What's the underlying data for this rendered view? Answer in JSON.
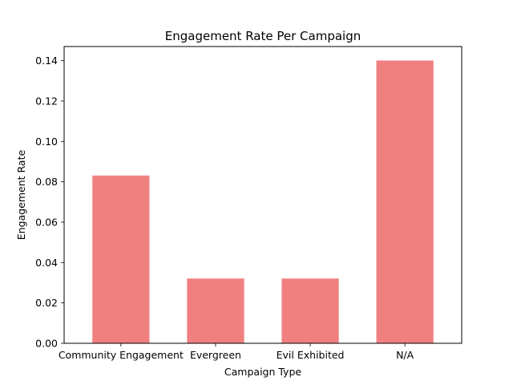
{
  "chart_data": {
    "type": "bar",
    "title": "Engagement Rate Per Campaign",
    "xlabel": "Campaign Type",
    "ylabel": "Engagement Rate",
    "categories": [
      "Community Engagement",
      "Evergreen",
      "Evil Exhibited",
      "N/A"
    ],
    "values": [
      0.083,
      0.032,
      0.032,
      0.14
    ],
    "ylim": [
      0,
      0.147
    ],
    "yticks": [
      0.0,
      0.02,
      0.04,
      0.06,
      0.08,
      0.1,
      0.12,
      0.14
    ],
    "ytick_labels": [
      "0.00",
      "0.02",
      "0.04",
      "0.06",
      "0.08",
      "0.10",
      "0.12",
      "0.14"
    ],
    "bar_color": "#f08080",
    "grid": false,
    "legend": "none"
  }
}
